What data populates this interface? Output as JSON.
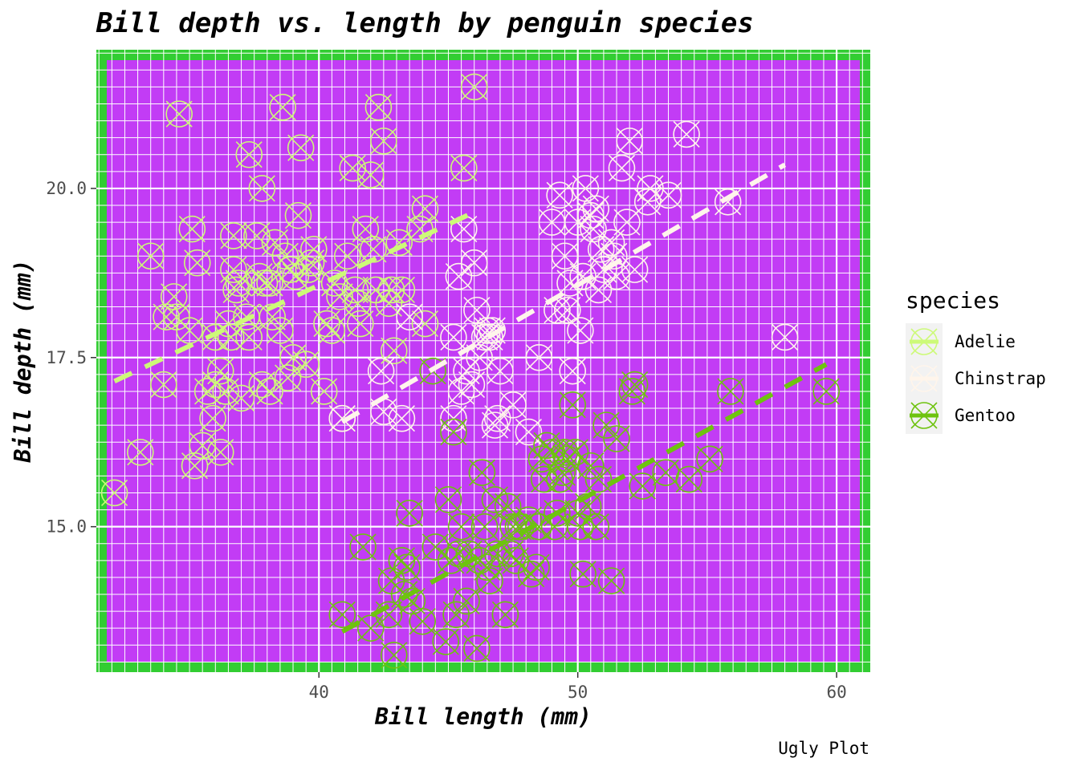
{
  "chart_data": {
    "type": "scatter",
    "title": "Bill depth vs. length by penguin species",
    "xlabel": "Bill length (mm)",
    "ylabel": "Bill depth (mm)",
    "caption": "Ugly Plot",
    "xlim": [
      31.4,
      61.3
    ],
    "ylim": [
      12.85,
      22.05
    ],
    "x_ticks": [
      40,
      50,
      60
    ],
    "x_tick_labels": [
      "40",
      "50",
      "60"
    ],
    "y_ticks": [
      15.0,
      17.5,
      20.0
    ],
    "y_tick_labels": [
      "15.0",
      "17.5",
      "20.0"
    ],
    "grid": true,
    "legend": {
      "title": "species",
      "position": "right"
    },
    "colors": {
      "panel_border": "#32cd32",
      "panel_fill": "#c23cf5",
      "grid": "#ffffff",
      "Adelie": "#cdfa78",
      "Chinstrap": "#fff5eb",
      "Gentoo": "#6ec30f"
    },
    "series": [
      {
        "name": "Adelie",
        "trend": {
          "x": [
            32.1,
            46.0
          ],
          "y": [
            17.15,
            19.65
          ]
        },
        "points": [
          [
            32.1,
            15.5
          ],
          [
            33.1,
            16.1
          ],
          [
            33.5,
            19.0
          ],
          [
            34.0,
            17.1
          ],
          [
            34.1,
            18.1
          ],
          [
            34.4,
            18.4
          ],
          [
            34.5,
            18.1
          ],
          [
            34.6,
            21.1
          ],
          [
            35.0,
            17.9
          ],
          [
            35.1,
            19.4
          ],
          [
            35.2,
            15.9
          ],
          [
            35.3,
            18.9
          ],
          [
            35.5,
            16.2
          ],
          [
            35.7,
            17.0
          ],
          [
            35.9,
            16.6
          ],
          [
            36.0,
            17.1
          ],
          [
            36.0,
            17.8
          ],
          [
            36.2,
            17.3
          ],
          [
            36.2,
            16.1
          ],
          [
            36.4,
            17.0
          ],
          [
            36.5,
            18.0
          ],
          [
            36.6,
            17.8
          ],
          [
            36.7,
            18.8
          ],
          [
            36.7,
            19.3
          ],
          [
            36.8,
            18.5
          ],
          [
            36.9,
            18.6
          ],
          [
            37.0,
            16.9
          ],
          [
            37.2,
            18.1
          ],
          [
            37.3,
            17.8
          ],
          [
            37.3,
            20.5
          ],
          [
            37.6,
            19.3
          ],
          [
            37.7,
            18.7
          ],
          [
            37.8,
            17.1
          ],
          [
            37.8,
            20.0
          ],
          [
            37.9,
            18.6
          ],
          [
            38.1,
            17.0
          ],
          [
            38.1,
            18.6
          ],
          [
            38.2,
            18.1
          ],
          [
            38.3,
            19.2
          ],
          [
            38.5,
            17.9
          ],
          [
            38.6,
            21.2
          ],
          [
            38.7,
            19.0
          ],
          [
            38.8,
            17.2
          ],
          [
            38.9,
            18.8
          ],
          [
            39.0,
            17.5
          ],
          [
            39.1,
            18.7
          ],
          [
            39.2,
            19.6
          ],
          [
            39.3,
            20.6
          ],
          [
            39.5,
            17.4
          ],
          [
            39.6,
            18.8
          ],
          [
            39.7,
            18.9
          ],
          [
            39.8,
            19.1
          ],
          [
            40.2,
            17.0
          ],
          [
            40.3,
            18.0
          ],
          [
            40.5,
            17.9
          ],
          [
            40.6,
            18.6
          ],
          [
            40.8,
            18.4
          ],
          [
            40.9,
            16.6
          ],
          [
            41.1,
            19.0
          ],
          [
            41.3,
            20.3
          ],
          [
            41.4,
            18.5
          ],
          [
            41.5,
            18.3
          ],
          [
            41.6,
            18.0
          ],
          [
            41.8,
            19.4
          ],
          [
            42.0,
            20.2
          ],
          [
            42.1,
            19.1
          ],
          [
            42.2,
            18.5
          ],
          [
            42.3,
            21.2
          ],
          [
            42.5,
            20.7
          ],
          [
            42.7,
            18.3
          ],
          [
            42.8,
            18.5
          ],
          [
            42.9,
            17.6
          ],
          [
            43.1,
            19.2
          ],
          [
            43.2,
            18.5
          ],
          [
            43.9,
            19.4
          ],
          [
            44.1,
            18.0
          ],
          [
            44.1,
            19.7
          ],
          [
            45.6,
            20.3
          ],
          [
            46.0,
            21.5
          ]
        ]
      },
      {
        "name": "Chinstrap",
        "trend": {
          "x": [
            40.9,
            58.0
          ],
          "y": [
            16.55,
            20.35
          ]
        },
        "points": [
          [
            40.9,
            16.6
          ],
          [
            42.4,
            17.3
          ],
          [
            42.5,
            16.7
          ],
          [
            43.2,
            16.6
          ],
          [
            43.5,
            18.1
          ],
          [
            45.2,
            16.6
          ],
          [
            45.2,
            17.8
          ],
          [
            45.4,
            18.7
          ],
          [
            45.5,
            17.0
          ],
          [
            45.6,
            19.4
          ],
          [
            45.7,
            17.3
          ],
          [
            45.9,
            17.1
          ],
          [
            46.0,
            18.9
          ],
          [
            46.1,
            18.2
          ],
          [
            46.2,
            17.5
          ],
          [
            46.4,
            17.8
          ],
          [
            46.5,
            17.9
          ],
          [
            46.6,
            17.8
          ],
          [
            46.7,
            17.9
          ],
          [
            46.8,
            16.5
          ],
          [
            46.9,
            16.6
          ],
          [
            47.0,
            17.3
          ],
          [
            47.5,
            16.8
          ],
          [
            48.1,
            16.4
          ],
          [
            48.5,
            17.5
          ],
          [
            49.0,
            19.5
          ],
          [
            49.2,
            18.2
          ],
          [
            49.3,
            19.9
          ],
          [
            49.5,
            19.0
          ],
          [
            49.6,
            18.2
          ],
          [
            49.7,
            18.6
          ],
          [
            49.8,
            17.3
          ],
          [
            50.0,
            19.5
          ],
          [
            50.1,
            17.9
          ],
          [
            50.2,
            18.7
          ],
          [
            50.3,
            20.0
          ],
          [
            50.5,
            19.6
          ],
          [
            50.6,
            19.4
          ],
          [
            50.7,
            19.7
          ],
          [
            50.8,
            18.5
          ],
          [
            50.9,
            19.1
          ],
          [
            51.0,
            18.8
          ],
          [
            51.3,
            19.2
          ],
          [
            51.4,
            19.0
          ],
          [
            51.5,
            18.7
          ],
          [
            51.7,
            20.3
          ],
          [
            51.9,
            19.5
          ],
          [
            52.0,
            20.7
          ],
          [
            52.2,
            18.8
          ],
          [
            52.7,
            19.8
          ],
          [
            52.8,
            20.0
          ],
          [
            53.5,
            19.9
          ],
          [
            54.2,
            20.8
          ],
          [
            55.8,
            19.8
          ],
          [
            58.0,
            17.8
          ]
        ]
      },
      {
        "name": "Gentoo",
        "trend": {
          "x": [
            40.9,
            59.6
          ],
          "y": [
            13.45,
            17.4
          ]
        },
        "points": [
          [
            40.9,
            13.7
          ],
          [
            41.7,
            14.7
          ],
          [
            42.0,
            13.5
          ],
          [
            42.7,
            13.7
          ],
          [
            42.8,
            14.2
          ],
          [
            42.9,
            13.1
          ],
          [
            43.2,
            14.5
          ],
          [
            43.3,
            14.0
          ],
          [
            43.4,
            14.4
          ],
          [
            43.5,
            15.2
          ],
          [
            43.6,
            13.9
          ],
          [
            44.0,
            13.6
          ],
          [
            44.4,
            17.3
          ],
          [
            44.5,
            14.7
          ],
          [
            44.9,
            13.3
          ],
          [
            45.0,
            15.4
          ],
          [
            45.1,
            14.5
          ],
          [
            45.2,
            16.4
          ],
          [
            45.3,
            13.7
          ],
          [
            45.4,
            14.6
          ],
          [
            45.5,
            15.0
          ],
          [
            45.7,
            13.9
          ],
          [
            45.8,
            14.6
          ],
          [
            46.1,
            13.2
          ],
          [
            46.2,
            14.5
          ],
          [
            46.3,
            15.8
          ],
          [
            46.4,
            15.0
          ],
          [
            46.5,
            14.4
          ],
          [
            46.6,
            14.2
          ],
          [
            46.8,
            15.4
          ],
          [
            46.9,
            14.6
          ],
          [
            47.2,
            13.7
          ],
          [
            47.3,
            15.3
          ],
          [
            47.4,
            14.6
          ],
          [
            47.5,
            15.0
          ],
          [
            47.6,
            14.5
          ],
          [
            47.7,
            15.0
          ],
          [
            47.8,
            15.0
          ],
          [
            48.1,
            15.1
          ],
          [
            48.2,
            14.3
          ],
          [
            48.4,
            14.4
          ],
          [
            48.5,
            15.0
          ],
          [
            48.6,
            16.0
          ],
          [
            48.7,
            15.7
          ],
          [
            48.8,
            16.2
          ],
          [
            49.0,
            16.1
          ],
          [
            49.1,
            15.0
          ],
          [
            49.2,
            15.2
          ],
          [
            49.3,
            15.7
          ],
          [
            49.4,
            15.8
          ],
          [
            49.5,
            16.1
          ],
          [
            49.6,
            16.0
          ],
          [
            49.8,
            16.8
          ],
          [
            49.9,
            16.1
          ],
          [
            50.0,
            15.2
          ],
          [
            50.1,
            15.0
          ],
          [
            50.2,
            14.3
          ],
          [
            50.4,
            15.3
          ],
          [
            50.5,
            15.9
          ],
          [
            50.7,
            15.0
          ],
          [
            50.8,
            15.7
          ],
          [
            51.1,
            16.5
          ],
          [
            51.3,
            14.2
          ],
          [
            51.5,
            16.3
          ],
          [
            52.1,
            17.0
          ],
          [
            52.2,
            17.1
          ],
          [
            52.5,
            15.6
          ],
          [
            53.4,
            15.8
          ],
          [
            54.3,
            15.7
          ],
          [
            55.1,
            16.0
          ],
          [
            55.9,
            17.0
          ],
          [
            59.6,
            17.0
          ]
        ]
      }
    ]
  }
}
